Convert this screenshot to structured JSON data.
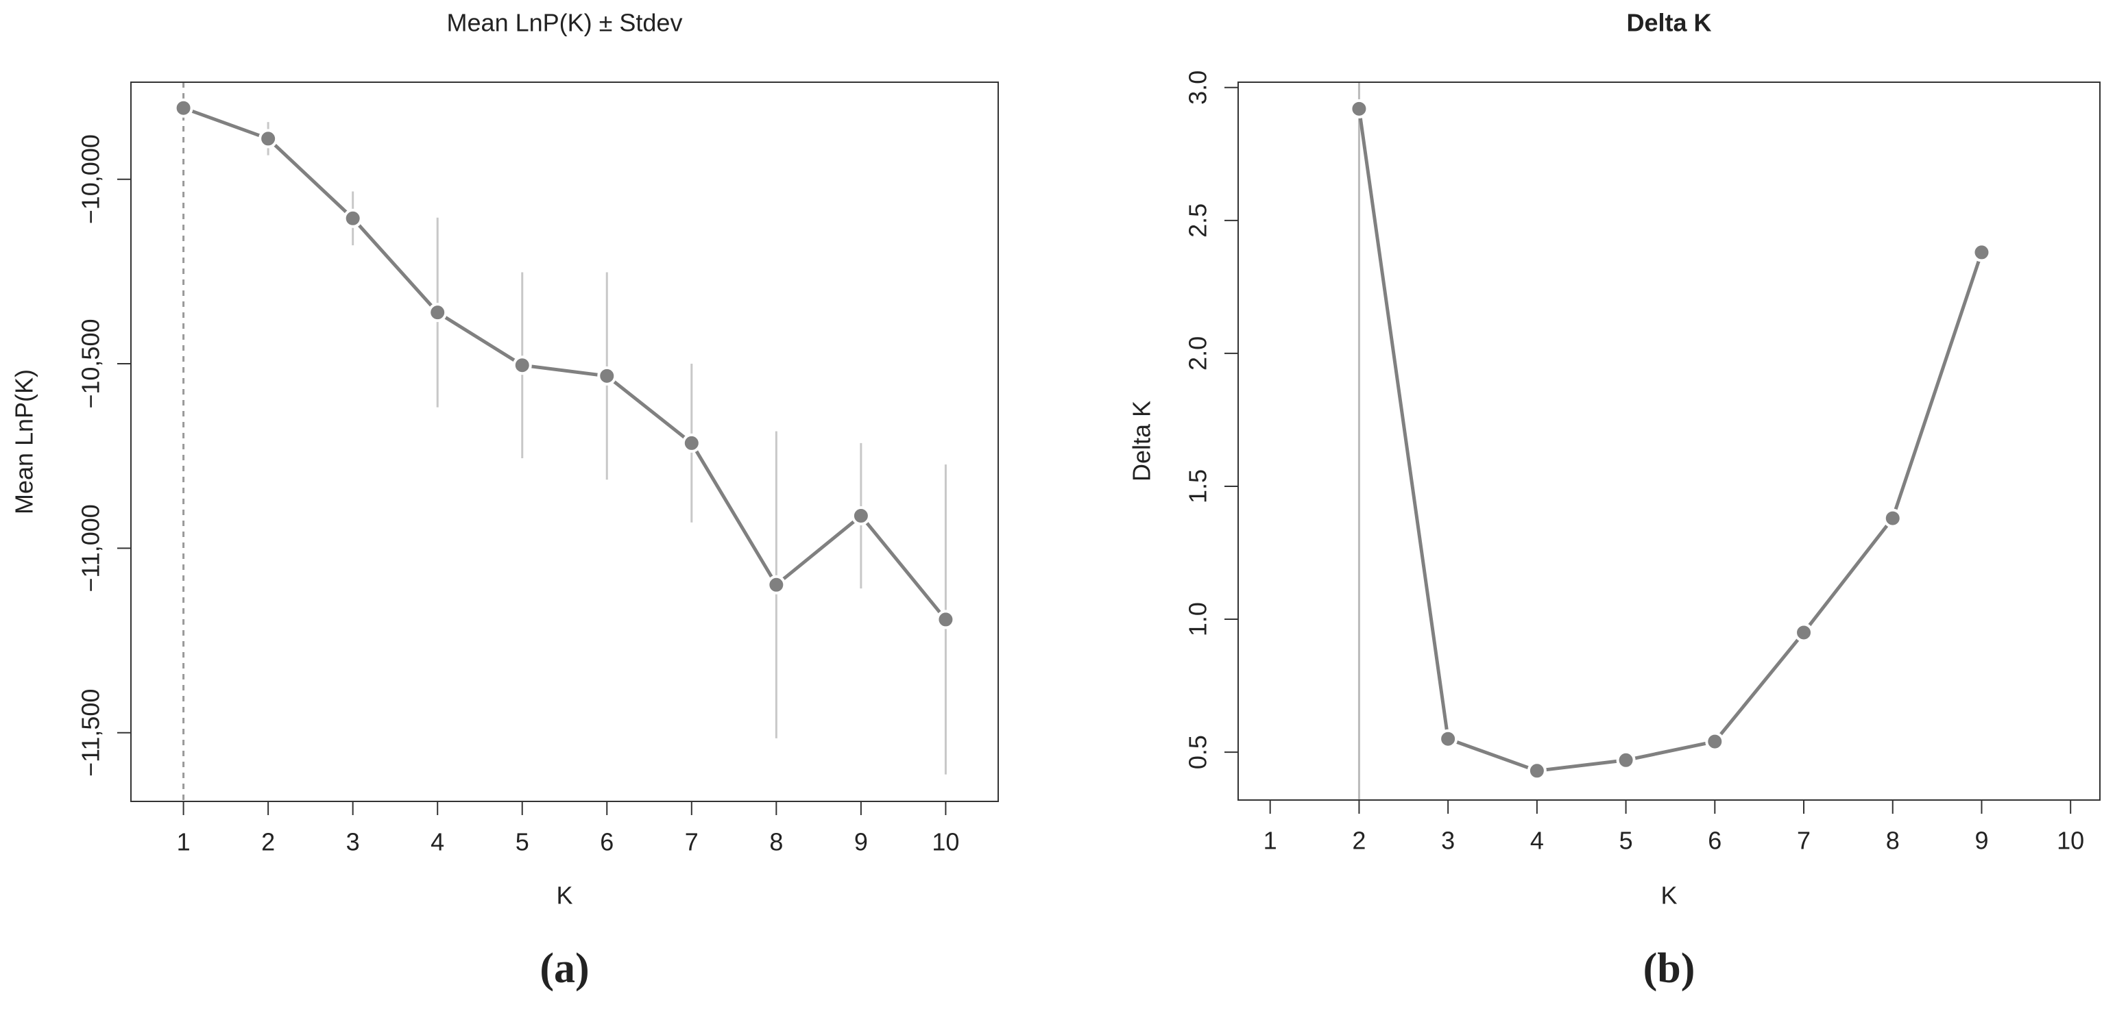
{
  "chart_data": [
    {
      "type": "line",
      "title": "Mean LnP(K) ± Stdev",
      "title_bold": false,
      "xlabel": "K",
      "ylabel": "Mean LnP(K)",
      "caption": "(a)",
      "x": [
        1,
        2,
        3,
        4,
        5,
        6,
        7,
        8,
        9,
        10
      ],
      "series": [
        {
          "color": "#808080",
          "errors_color": "#c8c8c8",
          "values": [
            -9807,
            -9890,
            -10106,
            -10361,
            -10504,
            -10533,
            -10715,
            -11099,
            -10912,
            -11193
          ],
          "errors": [
            10,
            45,
            73,
            257,
            252,
            281,
            215,
            416,
            197,
            420
          ]
        }
      ],
      "xlim": [
        0.38,
        10.62
      ],
      "ylim": [
        -11686,
        -9737
      ],
      "xticks": [
        1,
        2,
        3,
        4,
        5,
        6,
        7,
        8,
        9,
        10
      ],
      "yticks": [
        {
          "value": -10000,
          "label": "−10,000"
        },
        {
          "value": -10500,
          "label": "−10,500"
        },
        {
          "value": -11000,
          "label": "−11,000"
        },
        {
          "value": -11500,
          "label": "−11,500"
        }
      ],
      "vline": 1,
      "vline_dashed": true,
      "vline_color": "#999999"
    },
    {
      "type": "line",
      "title": "Delta K",
      "title_bold": true,
      "xlabel": "K",
      "ylabel": "Delta K",
      "caption": "(b)",
      "x": [
        1,
        2,
        3,
        4,
        5,
        6,
        7,
        8,
        9,
        10
      ],
      "series": [
        {
          "color": "#808080",
          "values": [
            null,
            2.92,
            0.55,
            0.43,
            0.47,
            0.54,
            0.95,
            1.38,
            2.38,
            null
          ]
        }
      ],
      "xlim": [
        0.64,
        10.33
      ],
      "ylim": [
        0.32,
        3.02
      ],
      "xticks": [
        1,
        2,
        3,
        4,
        5,
        6,
        7,
        8,
        9,
        10
      ],
      "yticks": [
        0.5,
        {
          "value": 1,
          "label": "1.0"
        },
        1.5,
        {
          "value": 2,
          "label": "2.0"
        },
        2.5,
        {
          "value": 3,
          "label": "3.0"
        }
      ],
      "vline": 2,
      "vline_dashed": false,
      "vline_color": "#bbbbbb"
    }
  ]
}
